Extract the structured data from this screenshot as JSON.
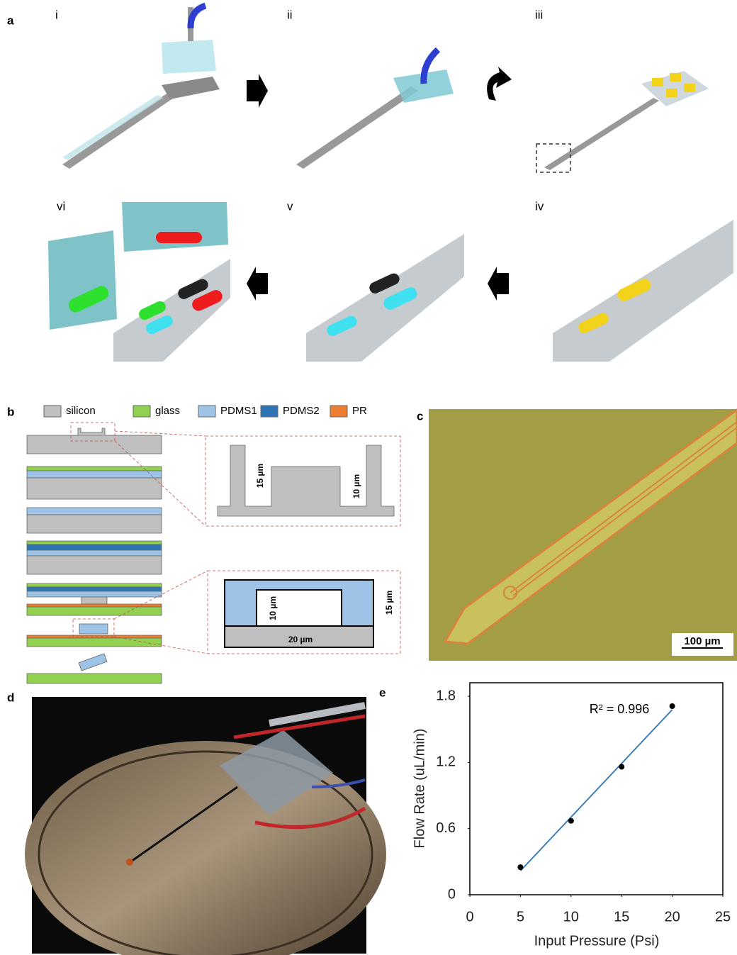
{
  "figure": {
    "panel_a": {
      "label": "a",
      "steps": [
        "i",
        "ii",
        "iii",
        "iv",
        "v",
        "vi"
      ]
    },
    "panel_b": {
      "label": "b",
      "legend": [
        "silicon",
        "glass",
        "PDMS1",
        "PDMS2",
        "PR"
      ],
      "dims_top": [
        "15 µm",
        "10 µm"
      ],
      "dims_bottom": [
        "10 µm",
        "15 µm",
        "20 µm"
      ]
    },
    "panel_c": {
      "label": "c",
      "scale_bar": "100 µm"
    },
    "panel_d": {
      "label": "d"
    },
    "panel_e": {
      "label": "e"
    }
  },
  "chart_data": {
    "type": "scatter",
    "x_label": "Input Pressure (Psi)",
    "y_label": "Flow  Rate (uL/min)",
    "annotation": "R² = 0.996",
    "x": [
      5,
      10,
      15,
      20
    ],
    "values": [
      0.25,
      0.67,
      1.16,
      1.71
    ],
    "color": "#000000",
    "trendline_color": "#2e75b6",
    "xlim": [
      0,
      25
    ],
    "xticks": [
      0,
      5,
      10,
      15,
      20,
      25
    ],
    "ylim": [
      0,
      1.8
    ],
    "yticks": [
      0,
      0.6,
      1.2,
      1.8
    ]
  }
}
